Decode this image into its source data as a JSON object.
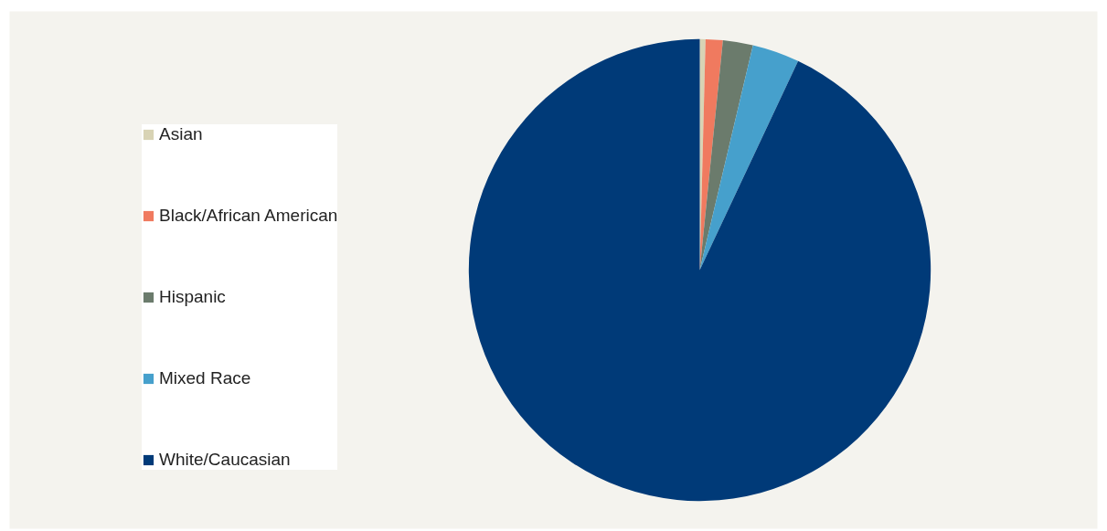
{
  "chart_data": {
    "type": "pie",
    "categories": [
      "Asian",
      "Black/African American",
      "Hispanic",
      "Mixed Race",
      "White/Caucasian"
    ],
    "values": [
      0.4,
      1.2,
      2.1,
      3.3,
      93.0
    ],
    "colors": [
      "#d8d3b4",
      "#f07a5f",
      "#6b7b6c",
      "#46a0cc",
      "#003a78"
    ],
    "legend": "left"
  }
}
